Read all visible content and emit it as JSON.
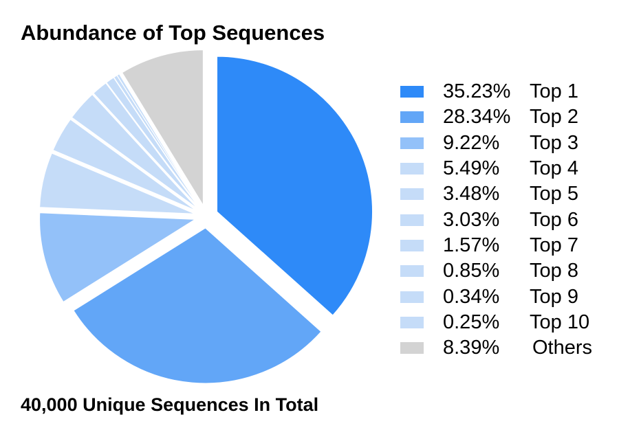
{
  "header": {
    "title": "Abundance of Top Sequences"
  },
  "footer": {
    "text": "40,000 Unique Sequences In Total"
  },
  "chart_data": {
    "type": "pie",
    "title": "Abundance of Top Sequences",
    "subtitle": "40,000 Unique Sequences In Total",
    "legend_position": "right",
    "slices": [
      {
        "label": "Top 1",
        "pct_label": "35.23%",
        "value": 35.23,
        "color": "#2e8af8"
      },
      {
        "label": "Top 2",
        "pct_label": "28.34%",
        "value": 28.34,
        "color": "#62a6f7"
      },
      {
        "label": "Top 3",
        "pct_label": "9.22%",
        "value": 9.22,
        "color": "#93c1f9"
      },
      {
        "label": "Top 4",
        "pct_label": "5.49%",
        "value": 5.49,
        "color": "#c5dcf8"
      },
      {
        "label": "Top 5",
        "pct_label": "3.48%",
        "value": 3.48,
        "color": "#c5dcf8"
      },
      {
        "label": "Top 6",
        "pct_label": "3.03%",
        "value": 3.03,
        "color": "#c5dcf8"
      },
      {
        "label": "Top 7",
        "pct_label": "1.57%",
        "value": 1.57,
        "color": "#c5dcf8"
      },
      {
        "label": "Top 8",
        "pct_label": "0.85%",
        "value": 0.85,
        "color": "#c5dcf8"
      },
      {
        "label": "Top 9",
        "pct_label": "0.34%",
        "value": 0.34,
        "color": "#c5dcf8"
      },
      {
        "label": "Top 10",
        "pct_label": "0.25%",
        "value": 0.25,
        "color": "#c5dcf8"
      },
      {
        "label": "Others",
        "pct_label": "8.39%",
        "value": 8.39,
        "color": "#d3d3d3"
      }
    ]
  }
}
